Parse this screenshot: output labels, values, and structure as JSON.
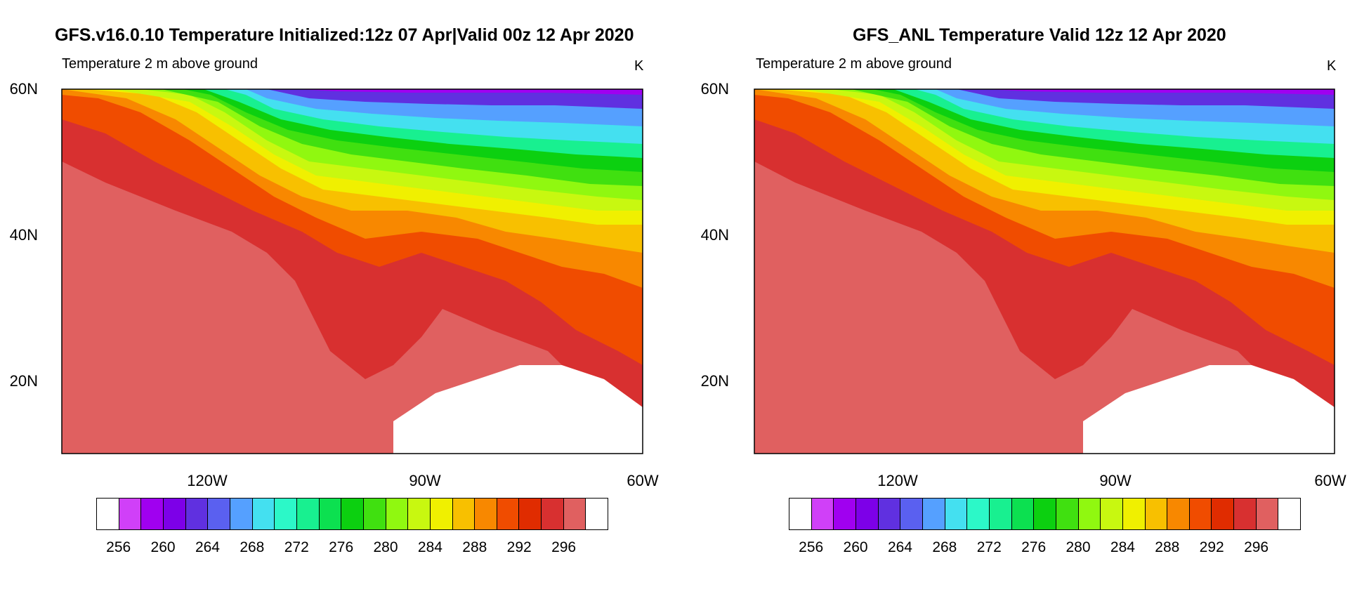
{
  "panels": [
    {
      "title": "GFS.v16.0.10 Temperature Initialized:12z 07 Apr|Valid 00z 12 Apr 2020",
      "subtitle": "Temperature 2 m above ground",
      "units": "K"
    },
    {
      "title": "GFS_ANL Temperature Valid 12z 12 Apr 2020",
      "subtitle": "Temperature 2 m above ground",
      "units": "K"
    }
  ],
  "axes": {
    "lat_labels": [
      "60N",
      "40N",
      "20N"
    ],
    "lon_labels": [
      "120W",
      "90W",
      "60W"
    ],
    "lat_range": [
      10,
      60
    ],
    "lon_range": [
      -140,
      -60
    ]
  },
  "colorbar": {
    "labels": [
      "256",
      "260",
      "264",
      "268",
      "272",
      "276",
      "280",
      "284",
      "288",
      "292",
      "296"
    ],
    "colors": [
      "#ffffff",
      "#d040f8",
      "#a000f0",
      "#7d00e8",
      "#6030e0",
      "#5a60f0",
      "#55a0ff",
      "#44e0f0",
      "#2cf8c8",
      "#18f090",
      "#0ce050",
      "#0cd010",
      "#40e010",
      "#90f810",
      "#c8f810",
      "#f0f000",
      "#f8c000",
      "#f88800",
      "#f04c00",
      "#e02c00",
      "#d83030",
      "#e06060",
      "#ffffff"
    ]
  }
}
